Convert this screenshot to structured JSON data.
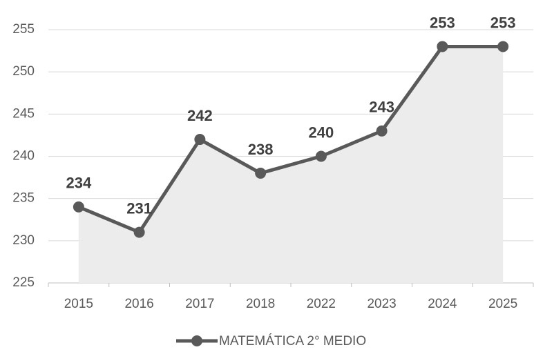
{
  "chart_data": {
    "type": "line",
    "categories": [
      "2015",
      "2016",
      "2017",
      "2018",
      "2022",
      "2023",
      "2024",
      "2025"
    ],
    "series": [
      {
        "name": "MATEMÁTICA 2° MEDIO",
        "color": "#595959",
        "area_color": "#ececec",
        "values": [
          234,
          231,
          242,
          238,
          240,
          243,
          253,
          253
        ]
      }
    ],
    "ylim": [
      225,
      255
    ],
    "yticks": [
      225,
      230,
      235,
      240,
      245,
      250,
      255
    ],
    "grid": true,
    "data_labels": true,
    "legend": "bottom"
  }
}
